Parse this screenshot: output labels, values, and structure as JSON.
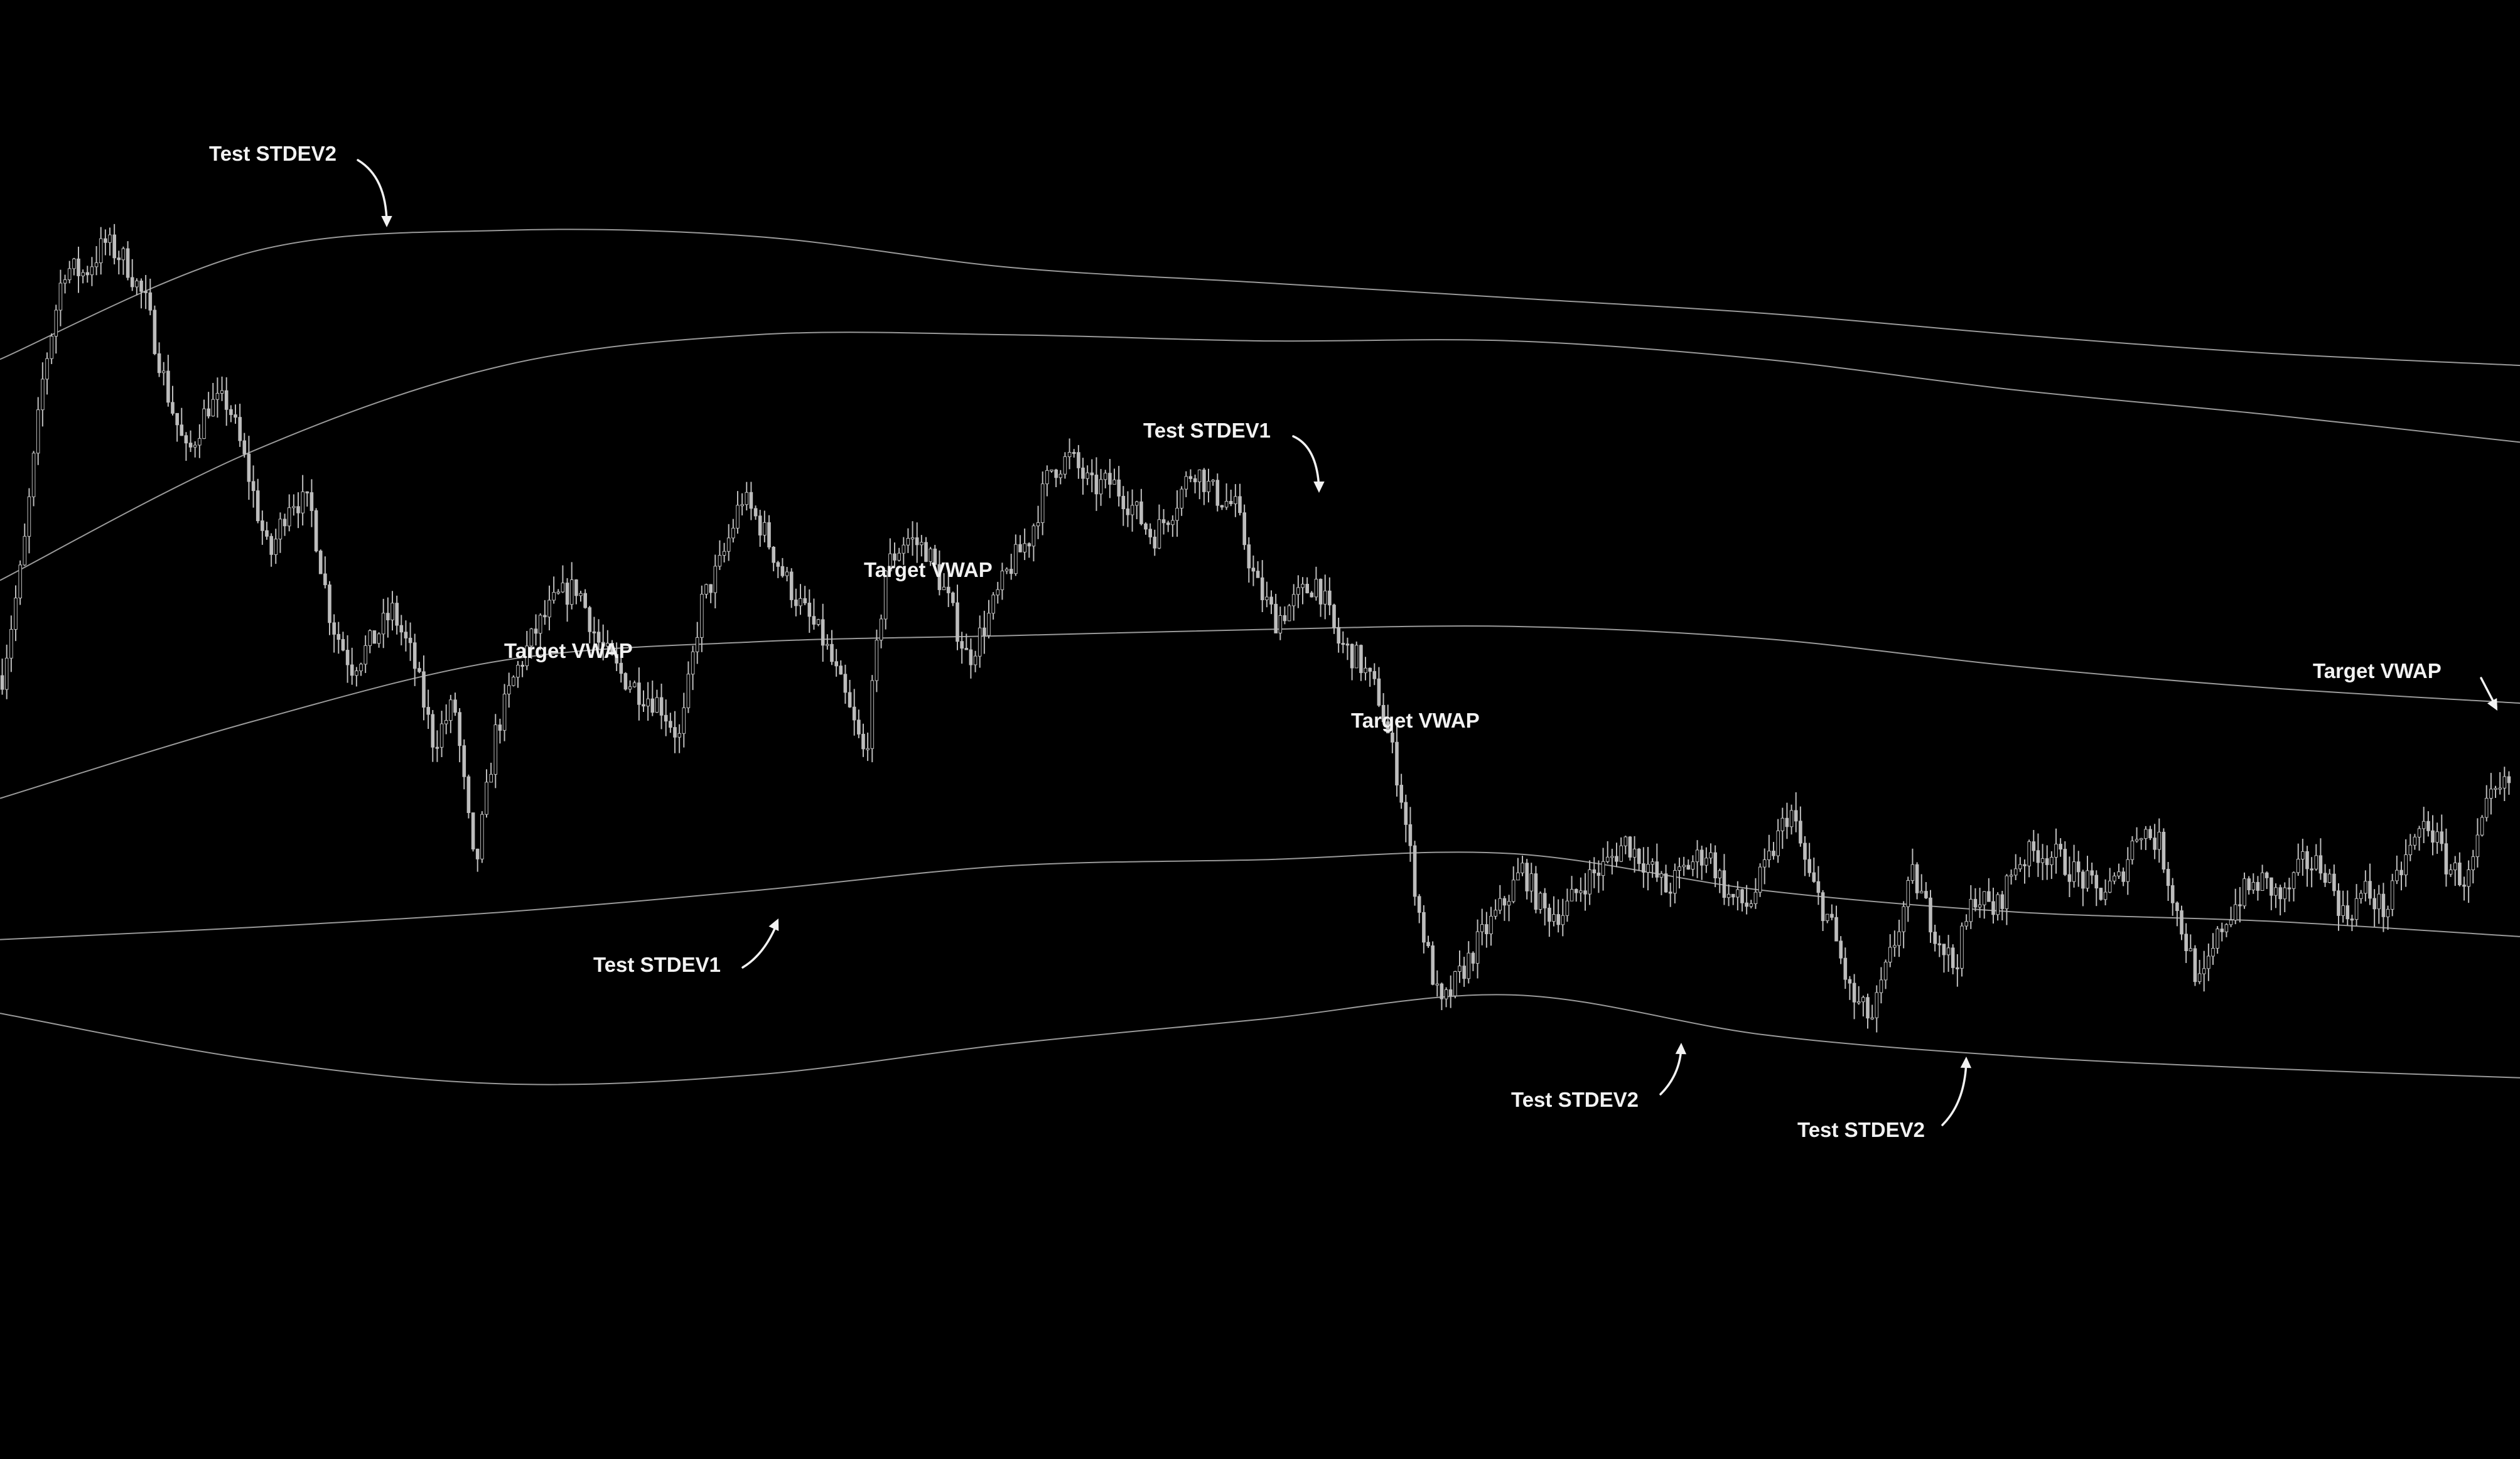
{
  "chart_data": {
    "type": "line",
    "colors": {
      "background": "#000000",
      "bands": "#9a9a9a",
      "candles": "#bdbdbd",
      "annotations": "#f2f2f2"
    },
    "grid": false,
    "legend": "none",
    "axes": "hidden",
    "x": [
      0,
      10,
      20,
      30,
      40,
      50,
      60,
      70,
      80,
      90,
      100
    ],
    "series": [
      {
        "values": [
          310,
          345,
          352,
          350,
          340,
          335,
          330,
          325,
          318,
          312,
          308
        ]
      },
      {
        "values": [
          238,
          280,
          308,
          318,
          318,
          316,
          316,
          310,
          300,
          292,
          283
        ]
      },
      {
        "values": [
          167,
          192,
          212,
          218,
          220,
          222,
          223,
          219,
          210,
          203,
          198
        ]
      },
      {
        "values": [
          121,
          125,
          130,
          137,
          145,
          147,
          149,
          137,
          130,
          127,
          122
        ]
      },
      {
        "values": [
          97,
          82,
          74,
          77,
          87,
          95,
          103,
          90,
          83,
          79,
          76
        ]
      }
    ],
    "price": [
      207,
      245,
      305,
      340,
      338,
      348,
      342,
      328,
      300,
      278,
      295,
      296,
      272,
      245,
      265,
      262,
      225,
      210,
      218,
      228,
      212,
      185,
      198,
      142,
      188,
      208,
      222,
      232,
      236,
      218,
      208,
      202,
      198,
      186,
      230,
      244,
      265,
      255,
      240,
      228,
      218,
      200,
      180,
      242,
      252,
      248,
      232,
      212,
      226,
      242,
      252,
      274,
      278,
      268,
      270,
      262,
      252,
      262,
      275,
      266,
      262,
      237,
      225,
      232,
      238,
      218,
      212,
      200,
      172,
      128,
      98,
      110,
      122,
      132,
      144,
      130,
      130,
      140,
      145,
      153,
      146,
      137,
      145,
      150,
      135,
      132,
      147,
      164,
      140,
      126,
      102,
      95,
      118,
      142,
      125,
      112,
      136,
      130,
      146,
      150,
      148,
      142,
      136,
      140,
      158,
      152,
      126,
      105,
      125,
      136,
      140,
      134,
      146,
      145,
      128,
      137,
      130,
      148,
      160,
      145,
      140,
      165,
      172
    ],
    "annotations": [
      {
        "text": "Test STDEV2"
      },
      {
        "text": "Target VWAP"
      },
      {
        "text": "Target VWAP"
      },
      {
        "text": "Test STDEV1"
      },
      {
        "text": "Test STDEV1"
      },
      {
        "text": "Target VWAP"
      },
      {
        "text": "Test STDEV2"
      },
      {
        "text": "Test STDEV2"
      },
      {
        "text": "Target VWAP"
      }
    ]
  }
}
